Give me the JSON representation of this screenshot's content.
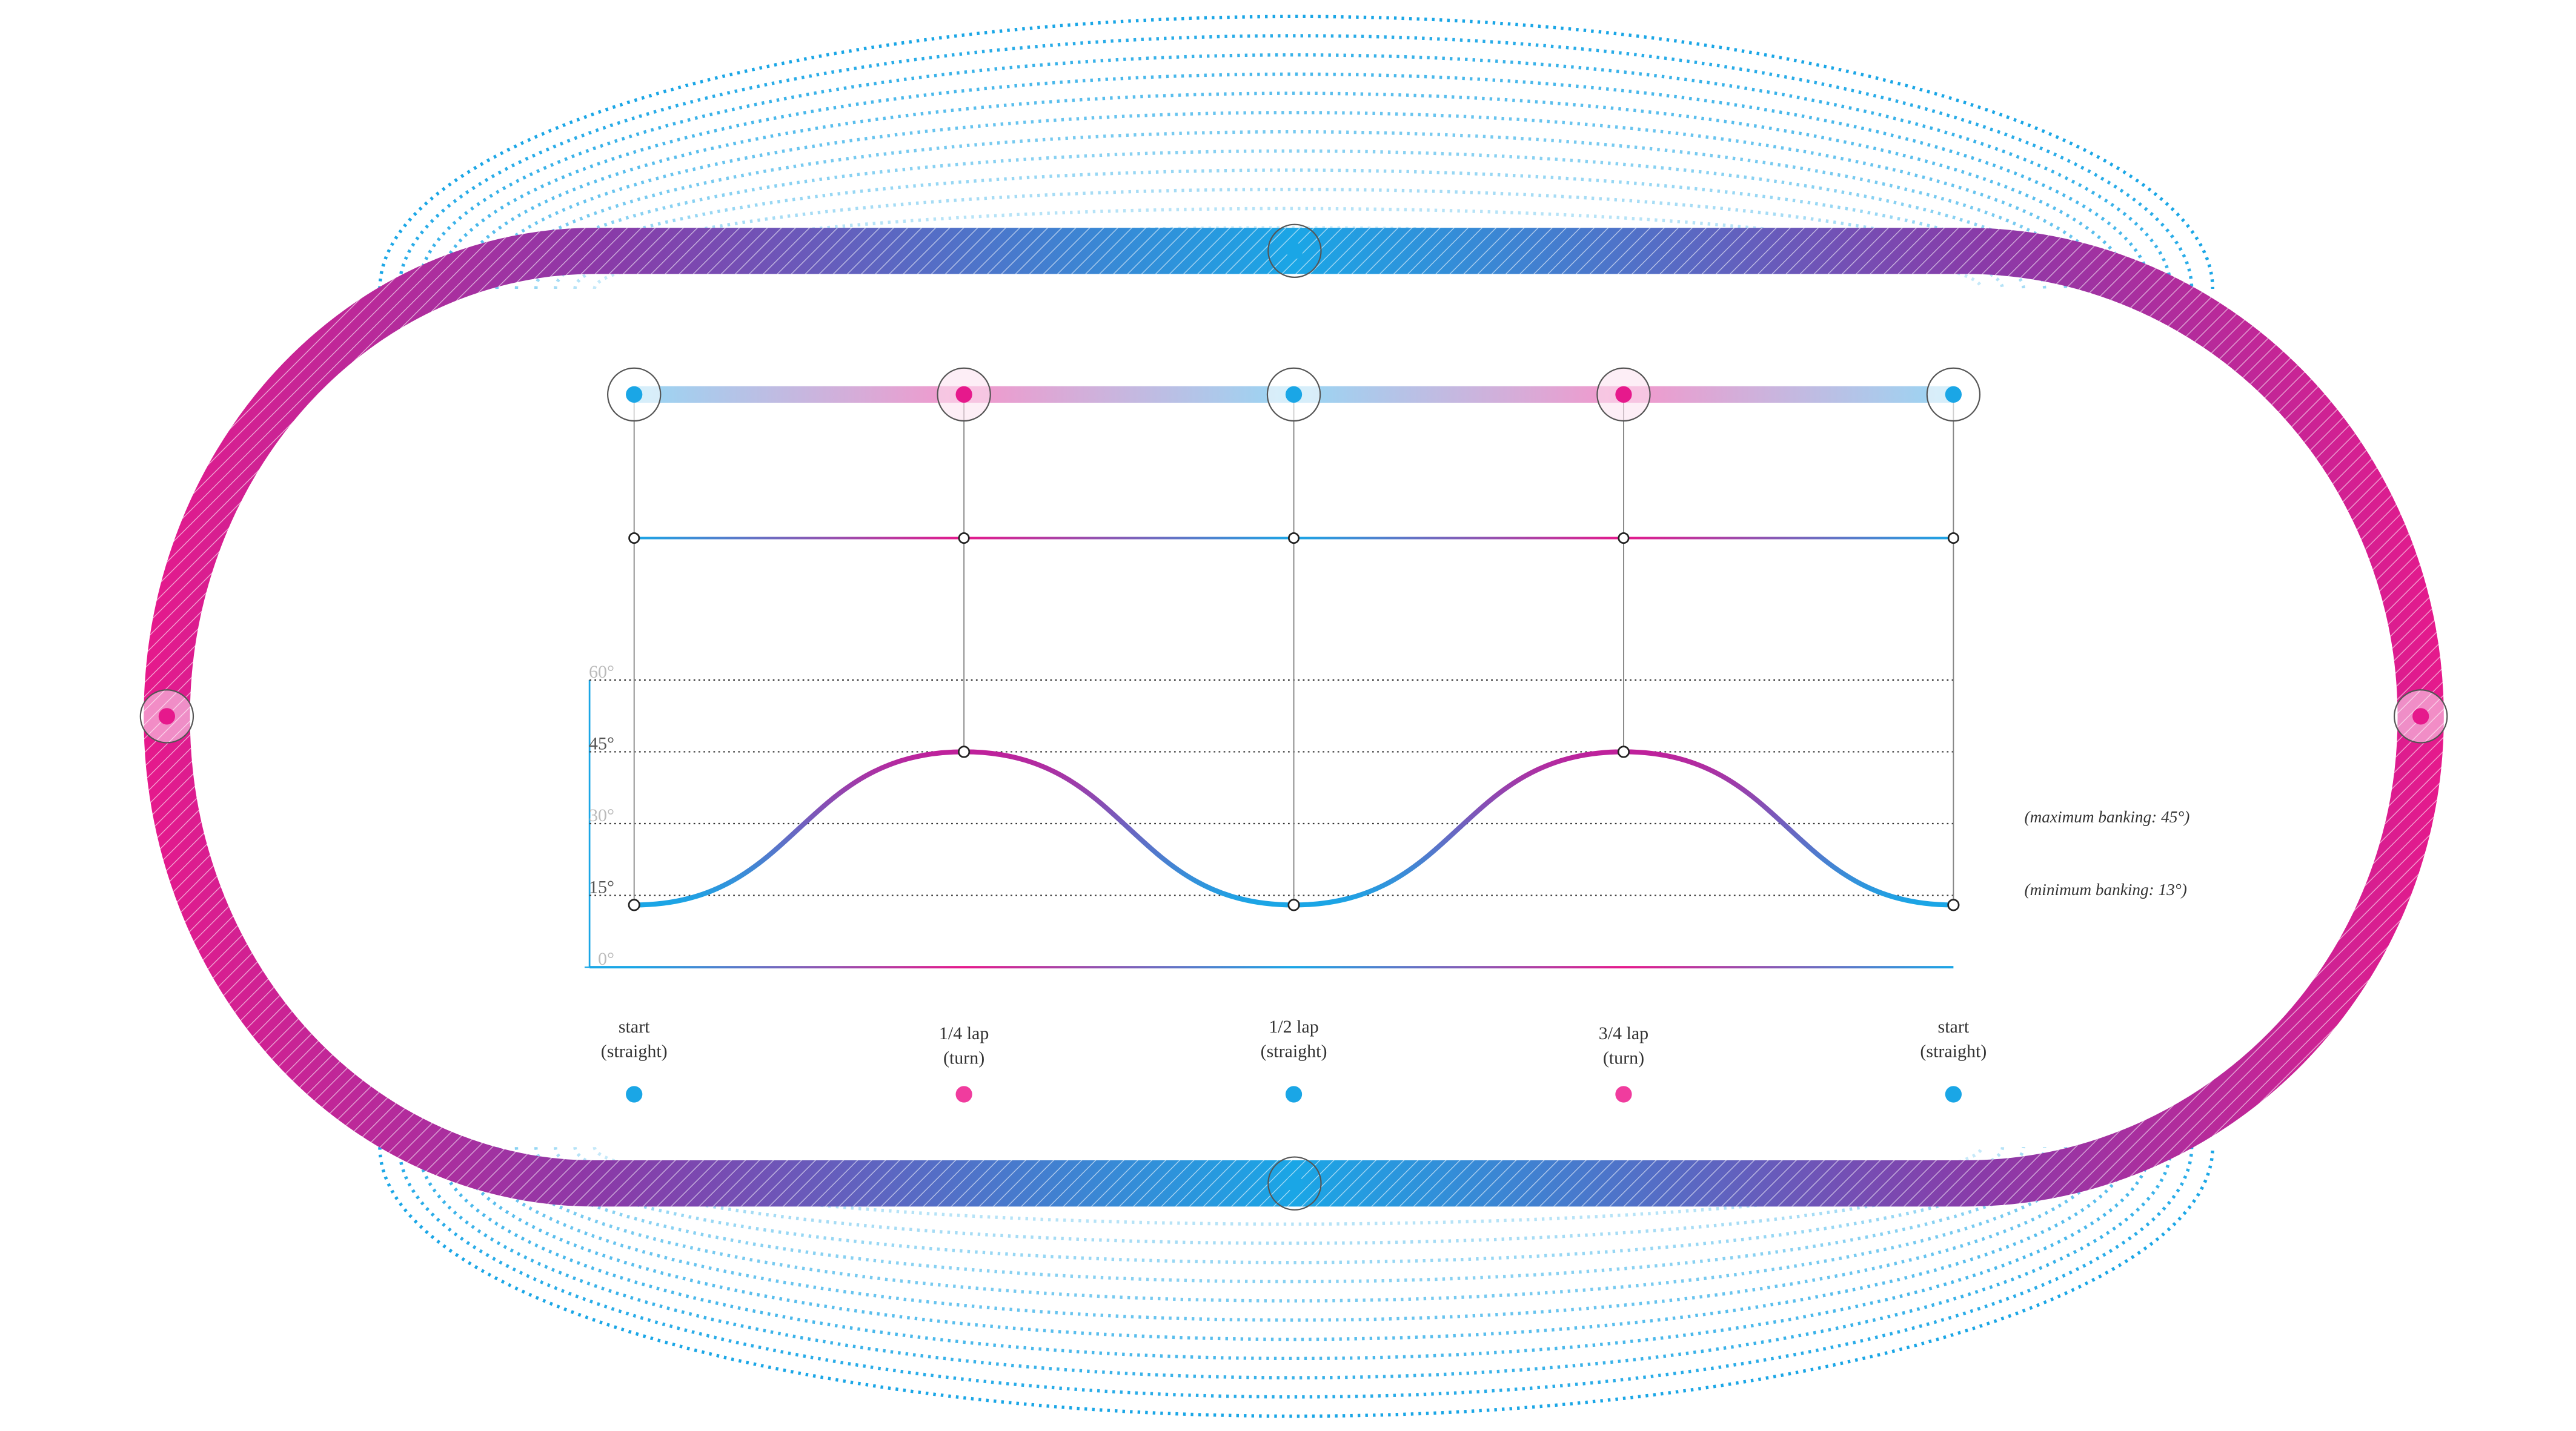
{
  "chart_data": {
    "type": "line",
    "categories": [
      "start",
      "1/4 lap",
      "1/2 lap",
      "3/4 lap",
      "start"
    ],
    "category_notes": [
      "(straight)",
      "(turn)",
      "(straight)",
      "(turn)",
      "(straight)"
    ],
    "values": [
      13,
      45,
      13,
      45,
      13
    ],
    "color": "#1aa6e6",
    "ylim": [
      0,
      60
    ],
    "yticks": [
      {
        "value": 0,
        "label": "0°"
      },
      {
        "value": 15,
        "label": "15°"
      },
      {
        "value": 30,
        "label": "30°"
      },
      {
        "value": 45,
        "label": "45°"
      },
      {
        "value": 60,
        "label": "60°"
      }
    ],
    "grid": true,
    "annotations": [
      "(maximum banking: 45°)",
      "(minimum banking: 13°)"
    ]
  }
}
